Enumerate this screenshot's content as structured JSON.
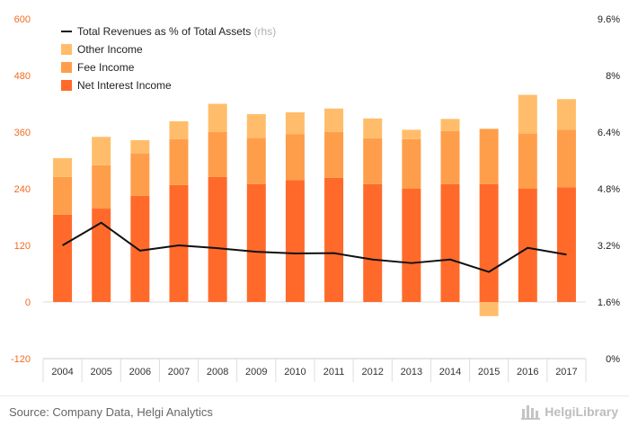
{
  "footer": {
    "source": "Source: Company Data, Helgi Analytics",
    "brand": "HelgiLibrary",
    "brand_logo_icon": "helgi-library-logo-icon"
  },
  "chart_data": {
    "type": "bar",
    "stacked": true,
    "categories": [
      "2004",
      "2005",
      "2006",
      "2007",
      "2008",
      "2009",
      "2010",
      "2011",
      "2012",
      "2013",
      "2014",
      "2015",
      "2016",
      "2017"
    ],
    "series": [
      {
        "name": "Net Interest Income",
        "type": "bar",
        "axis": "left",
        "color": "#ff6a2b",
        "values": [
          185,
          198,
          225,
          248,
          265,
          250,
          258,
          263,
          250,
          240,
          250,
          250,
          240,
          243
        ]
      },
      {
        "name": "Fee Income",
        "type": "bar",
        "axis": "left",
        "color": "#ff9e4a",
        "values": [
          80,
          92,
          90,
          97,
          95,
          98,
          98,
          97,
          97,
          105,
          112,
          117,
          117,
          122
        ]
      },
      {
        "name": "Other Income",
        "type": "bar",
        "axis": "left",
        "color": "#ffbd6b",
        "values": [
          40,
          60,
          28,
          38,
          60,
          50,
          46,
          50,
          42,
          20,
          26,
          -30,
          82,
          65
        ]
      },
      {
        "name": "Total Revenues as % of Total Assets",
        "type": "line",
        "axis": "right",
        "color": "#111111",
        "values": [
          3.2,
          3.84,
          3.05,
          3.2,
          3.12,
          3.02,
          2.97,
          2.98,
          2.8,
          2.7,
          2.8,
          2.45,
          3.13,
          2.94
        ]
      }
    ],
    "legend": {
      "position": "top-left",
      "items": [
        {
          "label": "Total Revenues as % of Total Assets",
          "note": "(rhs)",
          "marker": "line",
          "color": "#111111"
        },
        {
          "label": "Other Income",
          "marker": "square",
          "color": "#ffbd6b"
        },
        {
          "label": "Fee Income",
          "marker": "square",
          "color": "#ff9e4a"
        },
        {
          "label": "Net Interest Income",
          "marker": "square",
          "color": "#ff6a2b"
        }
      ]
    },
    "y_left": {
      "ylim": [
        -120,
        600
      ],
      "ticks": [
        -120,
        0,
        120,
        240,
        360,
        480,
        600
      ],
      "tick_color": "#f26b21"
    },
    "y_right": {
      "ylim": [
        0,
        9.6
      ],
      "ticks": [
        "0%",
        "1.6%",
        "3.2%",
        "4.8%",
        "6.4%",
        "8%",
        "9.6%"
      ]
    },
    "grid": false,
    "xlabel": "",
    "ylabel": ""
  }
}
